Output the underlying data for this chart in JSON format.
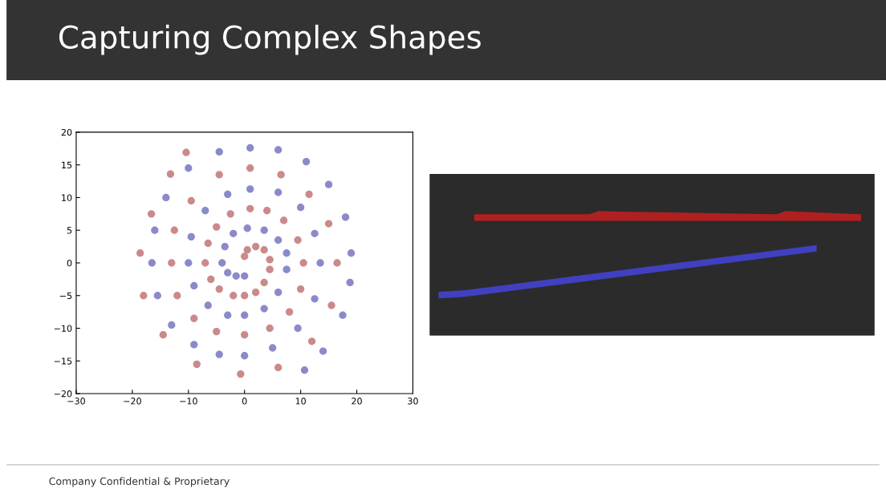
{
  "chart_data": {
    "type": "scatter",
    "title": "Capturing Complex Shapes",
    "annotations": [
      "Company Confidential & Proprietary"
    ],
    "xlim": [
      -30,
      30
    ],
    "ylim": [
      -20,
      20
    ],
    "xticks": [
      {
        "value": -30,
        "label": "−30"
      },
      {
        "value": -20,
        "label": "−20"
      },
      {
        "value": -10,
        "label": "−10"
      },
      0,
      10,
      20,
      30
    ],
    "yticks": [
      {
        "value": -20,
        "label": "−20"
      },
      {
        "value": -15,
        "label": "−15"
      },
      {
        "value": -10,
        "label": "−10"
      },
      {
        "value": -5,
        "label": "−5"
      },
      0,
      5,
      10,
      15,
      20
    ],
    "grid": false,
    "legend": false,
    "marker": "circle",
    "series": [
      {
        "color": "#a02a2a",
        "x": [
          -10.4,
          -13.2,
          -16.6,
          -18.6,
          -18,
          -14.5,
          -8.5,
          -0.7,
          6,
          12,
          15.5,
          16.5,
          15,
          11.5,
          6.5,
          1,
          -4.5,
          -9.5,
          -12.5,
          -13,
          -12,
          -9,
          -5,
          0,
          4.5,
          8,
          10,
          10.5,
          9.5,
          7,
          4,
          1,
          -2.5,
          -5,
          -6.5,
          -7,
          -6,
          -4.5,
          -2,
          0,
          2,
          3.5,
          4.5,
          4.5,
          3.5,
          2,
          0.5,
          0
        ],
        "values": [
          16.9,
          13.6,
          7.5,
          1.5,
          -5,
          -11,
          -15.5,
          -17,
          -16,
          -12,
          -6.5,
          0,
          6,
          10.5,
          13.5,
          14.5,
          13.5,
          9.5,
          5,
          0,
          -5,
          -8.5,
          -10.5,
          -11,
          -10,
          -7.5,
          -4,
          0,
          3.5,
          6.5,
          8,
          8.3,
          7.5,
          5.5,
          3,
          0,
          -2.5,
          -4,
          -5,
          -5,
          -4.5,
          -3,
          -1,
          0.5,
          2,
          2.5,
          2,
          1
        ]
      },
      {
        "color": "#2a2aa0",
        "x": [
          10.7,
          14,
          17.5,
          18.8,
          19,
          18,
          15,
          11,
          6,
          1,
          -4.5,
          -10,
          -14,
          -16,
          -16.5,
          -15.5,
          -13,
          -9,
          -4.5,
          0,
          5,
          9.5,
          12.5,
          13.5,
          12.5,
          10,
          6,
          1,
          -3,
          -7,
          -9.5,
          -10,
          -9,
          -6.5,
          -3,
          0,
          3.5,
          6,
          7.5,
          7.5,
          6,
          3.5,
          0.5,
          -2,
          -3.5,
          -4,
          -3,
          -1.5,
          0
        ],
        "values": [
          -16.4,
          -13.5,
          -8,
          -3,
          1.5,
          7,
          12,
          15.5,
          17.3,
          17.6,
          17,
          14.5,
          10,
          5,
          0,
          -5,
          -9.5,
          -12.5,
          -14,
          -14.2,
          -13,
          -10,
          -5.5,
          0,
          4.5,
          8.5,
          10.8,
          11.3,
          10.5,
          8,
          4,
          0,
          -3.5,
          -6.5,
          -8,
          -8,
          -7,
          -4.5,
          -1,
          1.5,
          3.5,
          5,
          5.3,
          4.5,
          2.5,
          0,
          -1.5,
          -2,
          -2
        ]
      }
    ]
  }
}
